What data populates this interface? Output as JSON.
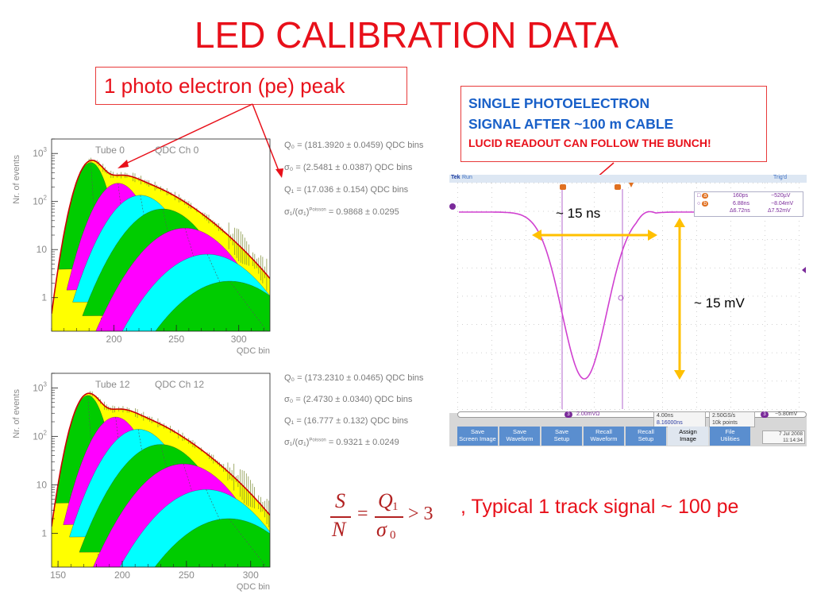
{
  "title": "LED CALIBRATION DATA",
  "pe_callout": "1 photo electron (pe) peak",
  "spe_box": {
    "line1": "SINGLE PHOTOELECTRON",
    "line2": "SIGNAL AFTER ~100 m CABLE",
    "line3": "LUCID READOUT  CAN FOLLOW THE BUNCH!"
  },
  "colors": {
    "title": "#e8101a",
    "blue_text": "#1960c8",
    "gaussians": [
      "#00cc00",
      "#ff00ff",
      "#00ffff",
      "#00cc00",
      "#ff00ff",
      "#00ffff",
      "#00cc00"
    ],
    "envelope": "#ffff00",
    "fit": "#cc0000",
    "arrow": "#ffc000",
    "trace": "#d040d0"
  },
  "histograms": [
    {
      "label": "Tube 0",
      "channel": "QDC Ch 0",
      "ylabel": "Nr. of events",
      "xlabel": "QDC bin",
      "y_ticks": [
        "10^3",
        "10^2",
        "10",
        "1"
      ],
      "x_ticks": [
        "200",
        "250",
        "300"
      ],
      "params": [
        "Q₀ = (181.3920 ± 0.0459) QDC bins",
        "σ₀ = (2.5481 ± 0.0387) QDC bins",
        "Q₁ = (17.036 ± 0.154) QDC bins",
        "σ₁/(σ₁)",
        "Poisson",
        "= 0.9868 ± 0.0295"
      ]
    },
    {
      "label": "Tube 12",
      "channel": "QDC Ch 12",
      "ylabel": "Nr. of events",
      "xlabel": "QDC bin",
      "y_ticks": [
        "10^3",
        "10^2",
        "10",
        "1"
      ],
      "x_ticks": [
        "150",
        "200",
        "250",
        "300"
      ],
      "params": [
        "Q₀ = (173.2310 ± 0.0465) QDC bins",
        "σ₀ = (2.4730 ± 0.0340) QDC bins",
        "Q₁ = (16.777 ± 0.132) QDC bins",
        "σ₁/(σ₁)",
        "Poisson",
        "= 0.9321 ± 0.0249"
      ]
    }
  ],
  "chart_data": [
    {
      "type": "area",
      "title": "Tube 0   QDC Ch 0",
      "xlabel": "QDC bin",
      "ylabel": "Nr. of events",
      "x_ticks": [
        200,
        250,
        300
      ],
      "y_scale": "log",
      "y_ticks": [
        1,
        10,
        100,
        1000
      ],
      "xlim": [
        150,
        325
      ],
      "ylim": [
        0.2,
        2000
      ],
      "pedestal": {
        "mean": 181.392,
        "sigma": 2.5481,
        "peak": 650
      },
      "gain_Q1": 17.036,
      "pe_peaks": [
        {
          "n": 1,
          "peak": 240
        },
        {
          "n": 2,
          "peak": 135
        },
        {
          "n": 3,
          "peak": 70
        },
        {
          "n": 4,
          "peak": 28
        },
        {
          "n": 5,
          "peak": 8
        },
        {
          "n": 6,
          "peak": 2.2
        }
      ],
      "legend": "none"
    },
    {
      "type": "area",
      "title": "Tube 12   QDC Ch 12",
      "xlabel": "QDC bin",
      "ylabel": "Nr. of events",
      "x_ticks": [
        150,
        200,
        250,
        300
      ],
      "y_scale": "log",
      "y_ticks": [
        1,
        10,
        100,
        1000
      ],
      "xlim": [
        145,
        315
      ],
      "ylim": [
        0.2,
        2000
      ],
      "pedestal": {
        "mean": 173.231,
        "sigma": 2.473,
        "peak": 700
      },
      "gain_Q1": 16.777,
      "pe_peaks": [
        {
          "n": 1,
          "peak": 250
        },
        {
          "n": 2,
          "peak": 140
        },
        {
          "n": 3,
          "peak": 68
        },
        {
          "n": 4,
          "peak": 27
        },
        {
          "n": 5,
          "peak": 8
        },
        {
          "n": 6,
          "peak": 2
        }
      ],
      "legend": "none"
    },
    {
      "type": "line",
      "title": "Oscilloscope trace",
      "annotations": [
        "~ 15 ns",
        "~ 15 mV"
      ],
      "pulse_width_ns": 15,
      "pulse_amplitude_mV": 15,
      "baseline_mV": 0
    }
  ],
  "scope": {
    "brand": "Tek",
    "state": "Run",
    "trig": "Trig'd",
    "width_annotation": "~ 15 ns",
    "height_annotation": "~ 15 mV",
    "measure": [
      [
        "a",
        "160ps",
        "−520µV"
      ],
      [
        "b",
        "6.88ns",
        "−8.04mV"
      ],
      [
        "",
        "Δ6.72ns",
        "Δ7.52mV"
      ]
    ],
    "status": {
      "ch": "3",
      "scale": "2.00mVΩ",
      "time": "4.00ns",
      "time2": "8.16000ns",
      "rate": "2.50GS/s",
      "points": "10k points",
      "trig_ch": "3",
      "trig_level": "−5.80mV"
    },
    "buttons": [
      "Save\nScreen Image",
      "Save\nWaveform",
      "Save\nSetup",
      "Recall\nWaveform",
      "Recall\nSetup",
      "Assign\nImage",
      "File\nUtilities"
    ],
    "date": "7 Jul  2008",
    "clock": "11:14:34"
  },
  "formula": {
    "S": "S",
    "N": "N",
    "Q": "Q",
    "Q_sub": "1",
    "sigma": "σ",
    "sigma_sub": "0",
    "eq": "=",
    "gt": "> 3"
  },
  "typical": ", Typical 1 track signal ~ 100 pe"
}
